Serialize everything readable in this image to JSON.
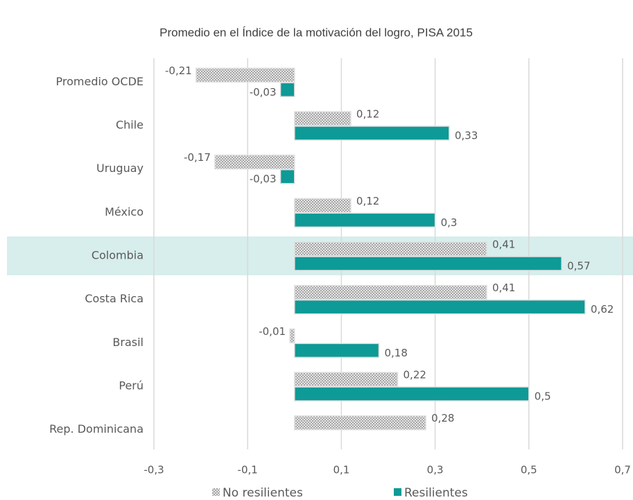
{
  "chart_data": {
    "type": "bar",
    "orientation": "horizontal",
    "title": "Promedio en el Índice de la motivación del logro, PISA 2015",
    "categories": [
      "Promedio OCDE",
      "Chile",
      "Uruguay",
      "México",
      "Colombia",
      "Costa Rica",
      "Brasil",
      "Perú",
      "Rep. Dominicana"
    ],
    "series": [
      {
        "name": "No resilientes",
        "color": "#a6a6a6",
        "pattern": "crosshatch",
        "values": [
          -0.21,
          0.12,
          -0.17,
          0.12,
          0.41,
          0.41,
          -0.01,
          0.22,
          0.28
        ],
        "value_labels": [
          "-0,21",
          "0,12",
          "-0,17",
          "0,12",
          "0,41",
          "0,41",
          "-0,01",
          "0,22",
          "0,28"
        ]
      },
      {
        "name": "Resilientes",
        "color": "#0e9a96",
        "values": [
          -0.03,
          0.33,
          -0.03,
          0.3,
          0.57,
          0.62,
          0.18,
          0.5,
          null
        ],
        "value_labels": [
          "-0,03",
          "0,33",
          "-0,03",
          "0,3",
          "0,57",
          "0,62",
          "0,18",
          "0,5",
          null
        ]
      }
    ],
    "xlim": [
      -0.3,
      0.7
    ],
    "xticks": [
      {
        "value": -0.3,
        "label": "-0,3"
      },
      {
        "value": -0.1,
        "label": "-0,1"
      },
      {
        "value": 0.1,
        "label": "0,1"
      },
      {
        "value": 0.3,
        "label": "0,3"
      },
      {
        "value": 0.5,
        "label": "0,5"
      },
      {
        "value": 0.7,
        "label": "0,7"
      }
    ],
    "grid": true,
    "highlight": "Colombia",
    "highlight_color": "#d7eeec",
    "legend": "bottom"
  }
}
